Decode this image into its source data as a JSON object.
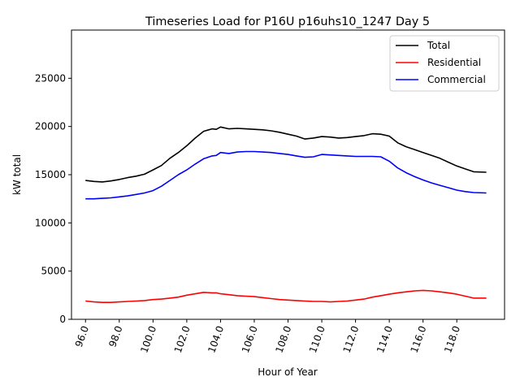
{
  "chart_data": {
    "type": "line",
    "title": "Timeseries Load for P16U p16uhs10_1247  Day 5",
    "xlabel": "Hour of Year",
    "ylabel": "kW total",
    "xlim": [
      95.17,
      120.83
    ],
    "ylim": [
      0,
      30000
    ],
    "xticks": [
      96,
      98,
      100,
      102,
      104,
      106,
      108,
      110,
      112,
      114,
      116,
      118
    ],
    "xtick_labels": [
      "96.0",
      "98.0",
      "100.0",
      "102.0",
      "104.0",
      "106.0",
      "108.0",
      "110.0",
      "112.0",
      "114.0",
      "116.0",
      "118.0"
    ],
    "yticks": [
      0,
      5000,
      10000,
      15000,
      20000,
      25000
    ],
    "ytick_labels": [
      "0",
      "5000",
      "10000",
      "15000",
      "20000",
      "25000"
    ],
    "legend_position": "top-right",
    "x": [
      96.0,
      96.5,
      97.0,
      97.5,
      98.0,
      98.5,
      99.0,
      99.5,
      100.0,
      100.5,
      101.0,
      101.5,
      102.0,
      102.5,
      103.0,
      103.5,
      103.75,
      104.0,
      104.5,
      105.0,
      105.5,
      106.0,
      106.5,
      107.0,
      107.5,
      108.0,
      108.5,
      109.0,
      109.5,
      110.0,
      110.5,
      111.0,
      111.5,
      112.0,
      112.5,
      113.0,
      113.5,
      114.0,
      114.5,
      115.0,
      115.5,
      116.0,
      116.5,
      117.0,
      117.5,
      118.0,
      118.5,
      119.0,
      119.75
    ],
    "series": [
      {
        "name": "Total",
        "color": "#000000",
        "values": [
          14400,
          14300,
          14250,
          14350,
          14500,
          14700,
          14850,
          15050,
          15500,
          15950,
          16700,
          17300,
          18000,
          18800,
          19500,
          19750,
          19700,
          19950,
          19750,
          19800,
          19750,
          19700,
          19650,
          19550,
          19400,
          19200,
          19000,
          18700,
          18800,
          18950,
          18900,
          18800,
          18850,
          18950,
          19050,
          19250,
          19200,
          19000,
          18300,
          17900,
          17600,
          17300,
          17000,
          16700,
          16300,
          15900,
          15600,
          15300,
          15250
        ]
      },
      {
        "name": "Residential",
        "color": "#ff0000",
        "values": [
          1900,
          1800,
          1750,
          1750,
          1800,
          1850,
          1900,
          1950,
          2050,
          2100,
          2200,
          2300,
          2500,
          2650,
          2800,
          2750,
          2750,
          2650,
          2550,
          2450,
          2400,
          2350,
          2250,
          2150,
          2050,
          2000,
          1950,
          1900,
          1850,
          1850,
          1800,
          1850,
          1900,
          2000,
          2100,
          2300,
          2450,
          2600,
          2750,
          2850,
          2950,
          3000,
          2950,
          2850,
          2750,
          2600,
          2400,
          2200,
          2200
        ]
      },
      {
        "name": "Commercial",
        "color": "#0000ff",
        "values": [
          12500,
          12500,
          12550,
          12600,
          12700,
          12800,
          12950,
          13100,
          13350,
          13800,
          14400,
          15000,
          15500,
          16100,
          16650,
          16950,
          17000,
          17300,
          17200,
          17350,
          17400,
          17400,
          17350,
          17300,
          17200,
          17100,
          16950,
          16800,
          16850,
          17100,
          17050,
          17000,
          16950,
          16900,
          16900,
          16900,
          16850,
          16400,
          15700,
          15200,
          14800,
          14450,
          14150,
          13900,
          13650,
          13400,
          13250,
          13150,
          13100
        ]
      }
    ]
  }
}
